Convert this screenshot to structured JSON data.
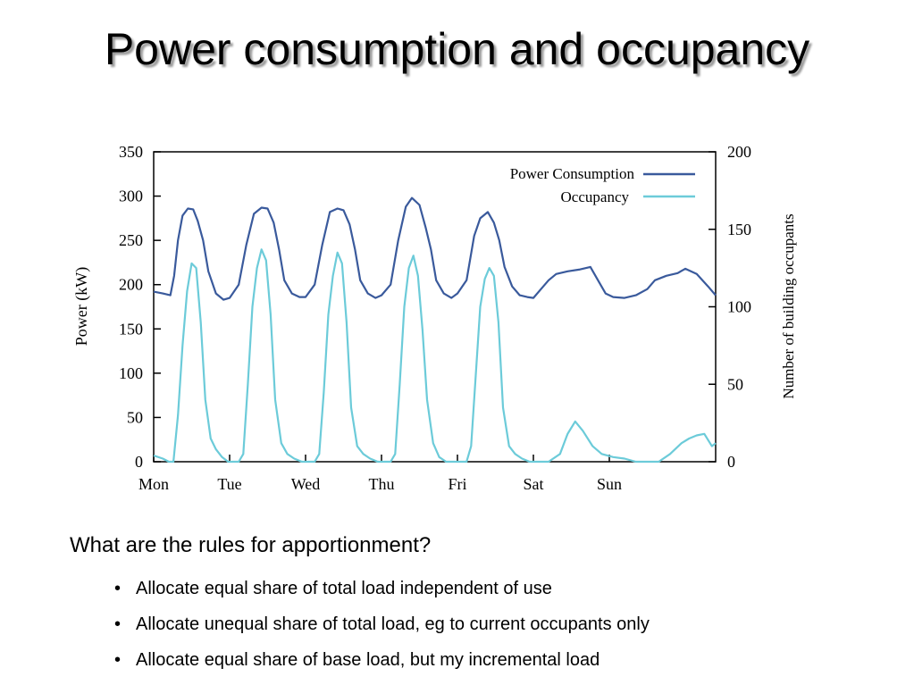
{
  "slide": {
    "title": "Power consumption and occupancy",
    "question": "What are the rules for apportionment?",
    "bullets": [
      "Allocate equal share of total load independent of use",
      "Allocate unequal share of total load, eg to current occupants only",
      "Allocate equal share of base load, but my incremental load"
    ]
  },
  "chart_data": {
    "type": "line",
    "ylabel": "Power (kW)",
    "y2label": "Number of building occupants",
    "ylim": [
      0,
      350
    ],
    "y2lim": [
      0,
      200
    ],
    "yticks": [
      0,
      50,
      100,
      150,
      200,
      250,
      300,
      350
    ],
    "y2ticks": [
      0,
      50,
      100,
      150,
      200
    ],
    "xlim": [
      0,
      7.4
    ],
    "xticks": [
      {
        "x": 0,
        "label": "Mon"
      },
      {
        "x": 1,
        "label": "Tue"
      },
      {
        "x": 2,
        "label": "Wed"
      },
      {
        "x": 3,
        "label": "Thu"
      },
      {
        "x": 4,
        "label": "Fri"
      },
      {
        "x": 5,
        "label": "Sat"
      },
      {
        "x": 6,
        "label": "Sun"
      }
    ],
    "legend_position": "top-right",
    "grid": false,
    "series": [
      {
        "name": "Power Consumption",
        "axis": "left",
        "color": "#3a5a9c",
        "x": [
          0,
          0.12,
          0.22,
          0.27,
          0.32,
          0.38,
          0.45,
          0.52,
          0.58,
          0.65,
          0.72,
          0.82,
          0.92,
          1.0,
          1.12,
          1.22,
          1.32,
          1.42,
          1.5,
          1.58,
          1.65,
          1.72,
          1.82,
          1.92,
          2.0,
          2.12,
          2.22,
          2.32,
          2.42,
          2.5,
          2.58,
          2.65,
          2.72,
          2.82,
          2.92,
          3.0,
          3.12,
          3.22,
          3.32,
          3.4,
          3.5,
          3.58,
          3.65,
          3.72,
          3.82,
          3.92,
          4.0,
          4.12,
          4.22,
          4.3,
          4.4,
          4.48,
          4.55,
          4.62,
          4.72,
          4.82,
          4.92,
          5.0,
          5.1,
          5.2,
          5.3,
          5.45,
          5.6,
          5.75,
          5.85,
          5.95,
          6.05,
          6.2,
          6.35,
          6.5,
          6.6,
          6.75,
          6.9,
          7.0,
          7.15,
          7.3,
          7.4
        ],
        "values": [
          192,
          190,
          188,
          210,
          250,
          278,
          286,
          285,
          272,
          250,
          215,
          190,
          183,
          185,
          200,
          245,
          280,
          287,
          286,
          270,
          240,
          205,
          190,
          186,
          186,
          200,
          245,
          282,
          286,
          284,
          268,
          240,
          205,
          190,
          185,
          188,
          200,
          250,
          288,
          298,
          290,
          265,
          240,
          205,
          190,
          185,
          190,
          205,
          255,
          275,
          282,
          270,
          250,
          220,
          198,
          188,
          186,
          185,
          195,
          205,
          212,
          215,
          217,
          220,
          205,
          190,
          186,
          185,
          188,
          195,
          205,
          210,
          213,
          218,
          212,
          198,
          188
        ]
      },
      {
        "name": "Occupancy",
        "axis": "right",
        "color": "#6ccbd9",
        "x": [
          0,
          0.12,
          0.2,
          0.26,
          0.32,
          0.38,
          0.44,
          0.5,
          0.56,
          0.62,
          0.68,
          0.75,
          0.82,
          0.9,
          0.98,
          1.05,
          1.12,
          1.18,
          1.24,
          1.3,
          1.36,
          1.42,
          1.48,
          1.54,
          1.6,
          1.68,
          1.76,
          1.85,
          1.95,
          2.05,
          2.12,
          2.18,
          2.24,
          2.3,
          2.36,
          2.42,
          2.48,
          2.54,
          2.6,
          2.68,
          2.76,
          2.85,
          2.95,
          3.05,
          3.12,
          3.18,
          3.24,
          3.3,
          3.36,
          3.42,
          3.48,
          3.54,
          3.6,
          3.68,
          3.76,
          3.85,
          3.95,
          4.05,
          4.12,
          4.18,
          4.24,
          4.3,
          4.36,
          4.42,
          4.48,
          4.54,
          4.6,
          4.68,
          4.76,
          4.85,
          4.95,
          5.05,
          5.2,
          5.35,
          5.45,
          5.55,
          5.65,
          5.78,
          5.9,
          6.05,
          6.2,
          6.35,
          6.5,
          6.65,
          6.8,
          6.95,
          7.05,
          7.15,
          7.25,
          7.35,
          7.4
        ],
        "values": [
          4,
          2,
          0,
          0,
          30,
          75,
          110,
          128,
          125,
          90,
          40,
          15,
          8,
          3,
          0,
          0,
          0,
          5,
          50,
          100,
          125,
          137,
          130,
          95,
          40,
          12,
          5,
          2,
          0,
          0,
          0,
          5,
          45,
          95,
          120,
          135,
          128,
          90,
          35,
          10,
          5,
          2,
          0,
          0,
          0,
          5,
          50,
          100,
          125,
          133,
          120,
          85,
          40,
          12,
          3,
          0,
          0,
          0,
          0,
          10,
          55,
          100,
          118,
          125,
          120,
          90,
          35,
          10,
          5,
          2,
          0,
          0,
          0,
          5,
          18,
          26,
          20,
          10,
          5,
          3,
          2,
          0,
          0,
          0,
          5,
          12,
          15,
          17,
          18,
          10,
          12
        ]
      }
    ]
  }
}
